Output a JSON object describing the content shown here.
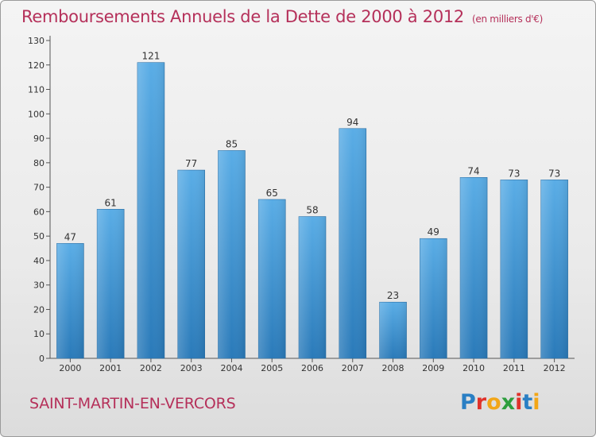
{
  "title": "Remboursements Annuels de la Dette de 2000 à 2012",
  "subtitle": "(en milliers d'€)",
  "commune": "SAINT-MARTIN-EN-VERCORS",
  "logo": {
    "letters": [
      "P",
      "r",
      "o",
      "x",
      "i",
      "t",
      "i"
    ],
    "colors": [
      "#2a7fc4",
      "#e0322b",
      "#f2a617",
      "#2e9e3e",
      "#e0322b",
      "#2a7fc4",
      "#f2a617"
    ]
  },
  "colors": {
    "bar_top": "#5aade6",
    "bar_bottom": "#2a7ab9",
    "title": "#b5305a"
  },
  "chart_data": {
    "type": "bar",
    "categories": [
      "2000",
      "2001",
      "2002",
      "2003",
      "2004",
      "2005",
      "2006",
      "2007",
      "2008",
      "2009",
      "2010",
      "2011",
      "2012"
    ],
    "values": [
      47,
      61,
      121,
      77,
      85,
      65,
      58,
      94,
      23,
      49,
      74,
      73,
      73
    ],
    "title": "Remboursements Annuels de la Dette de 2000 à 2012",
    "xlabel": "",
    "ylabel": "",
    "ylim": [
      0,
      130
    ],
    "yticks": [
      0,
      10,
      20,
      30,
      40,
      50,
      60,
      70,
      80,
      90,
      100,
      110,
      120,
      130
    ],
    "grid": false,
    "data_labels": true
  }
}
